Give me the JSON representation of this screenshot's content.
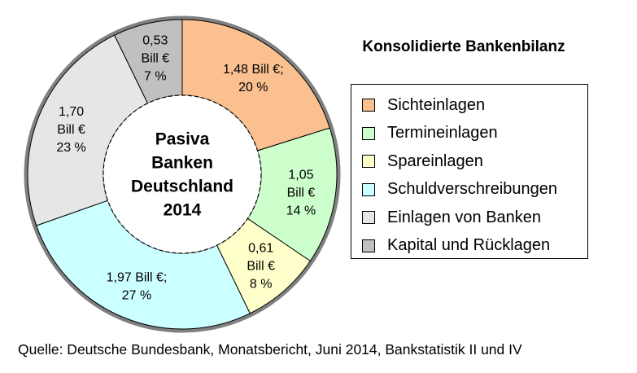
{
  "chart_data": {
    "type": "pie",
    "title": "Konsolidierte Bankenbilanz",
    "center_label": [
      "Pasiva",
      "Banken",
      "Deutschland",
      "2014"
    ],
    "unit": "Bill €",
    "slices": [
      {
        "name": "Sichteinlagen",
        "value": 1.48,
        "percent": 20,
        "color": "#FAC090",
        "label_lines": [
          "1,48 Bill €;",
          "20 %"
        ]
      },
      {
        "name": "Termineinlagen",
        "value": 1.05,
        "percent": 14,
        "color": "#CCFFCC",
        "label_lines": [
          "1,05",
          "Bill €",
          "14 %"
        ]
      },
      {
        "name": "Spareinlagen",
        "value": 0.61,
        "percent": 8,
        "color": "#FFFFCC",
        "label_lines": [
          "0,61",
          "Bill €",
          "8 %"
        ]
      },
      {
        "name": "Schuldverschreibungen",
        "value": 1.97,
        "percent": 27,
        "color": "#CCFFFF",
        "label_lines": [
          "1,97 Bill €;",
          "27 %"
        ]
      },
      {
        "name": "Einlagen von Banken",
        "value": 1.7,
        "percent": 23,
        "color": "#E6E6E6",
        "label_lines": [
          "1,70",
          "Bill €",
          "23 %"
        ]
      },
      {
        "name": "Kapital und Rücklagen",
        "value": 0.53,
        "percent": 7,
        "color": "#C0C0C0",
        "label_lines": [
          "0,53",
          "Bill €",
          "7 %"
        ]
      }
    ],
    "legend_position": "right"
  },
  "source": "Quelle: Deutsche Bundesbank, Monatsbericht, Juni 2014, Bankstatistik II und  IV"
}
